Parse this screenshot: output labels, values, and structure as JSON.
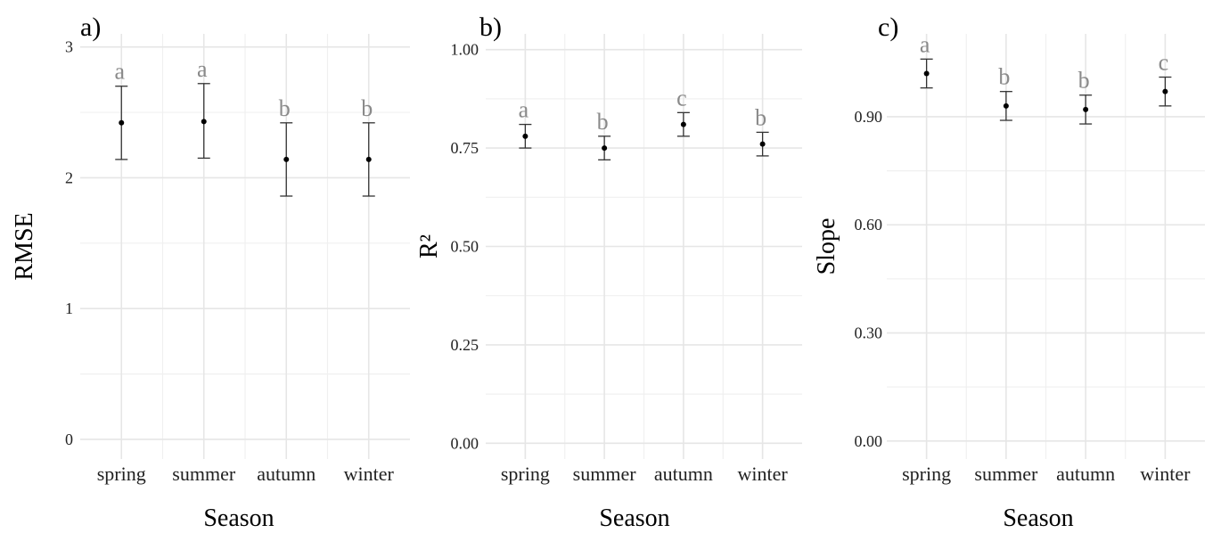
{
  "chart_data": [
    {
      "type": "errorbar",
      "panel_label": "a)",
      "xlabel": "Season",
      "ylabel": "RMSE",
      "categories": [
        "spring",
        "summer",
        "autumn",
        "winter"
      ],
      "values": [
        2.42,
        2.43,
        2.14,
        2.14
      ],
      "lower": [
        2.14,
        2.15,
        1.86,
        1.86
      ],
      "upper": [
        2.7,
        2.72,
        2.42,
        2.42
      ],
      "letters": [
        "a",
        "a",
        "b",
        "b"
      ],
      "ylim": [
        -0.15,
        3.1
      ],
      "yticks": [
        0,
        1,
        2,
        3
      ],
      "ytick_labels": [
        "0",
        "1",
        "2",
        "3"
      ],
      "grid": true
    },
    {
      "type": "errorbar",
      "panel_label": "b)",
      "xlabel": "Season",
      "ylabel": "R²",
      "categories": [
        "spring",
        "summer",
        "autumn",
        "winter"
      ],
      "values": [
        0.78,
        0.75,
        0.81,
        0.76
      ],
      "lower": [
        0.75,
        0.72,
        0.78,
        0.73
      ],
      "upper": [
        0.81,
        0.78,
        0.84,
        0.79
      ],
      "letters": [
        "a",
        "b",
        "c",
        "b"
      ],
      "ylim": [
        -0.04,
        1.04
      ],
      "yticks": [
        0.0,
        0.25,
        0.5,
        0.75,
        1.0
      ],
      "ytick_labels": [
        "0.00",
        "0.25",
        "0.50",
        "0.75",
        "1.00"
      ],
      "grid": true
    },
    {
      "type": "errorbar",
      "panel_label": "c)",
      "xlabel": "Season",
      "ylabel": "Slope",
      "categories": [
        "spring",
        "summer",
        "autumn",
        "winter"
      ],
      "values": [
        1.02,
        0.93,
        0.92,
        0.97
      ],
      "lower": [
        0.98,
        0.89,
        0.88,
        0.93
      ],
      "upper": [
        1.06,
        0.97,
        0.96,
        1.01
      ],
      "letters": [
        "a",
        "b",
        "b",
        "c"
      ],
      "ylim": [
        -0.05,
        1.13
      ],
      "yticks": [
        0.0,
        0.3,
        0.6,
        0.9
      ],
      "ytick_labels": [
        "0.00",
        "0.30",
        "0.60",
        "0.90"
      ],
      "grid": true
    }
  ]
}
